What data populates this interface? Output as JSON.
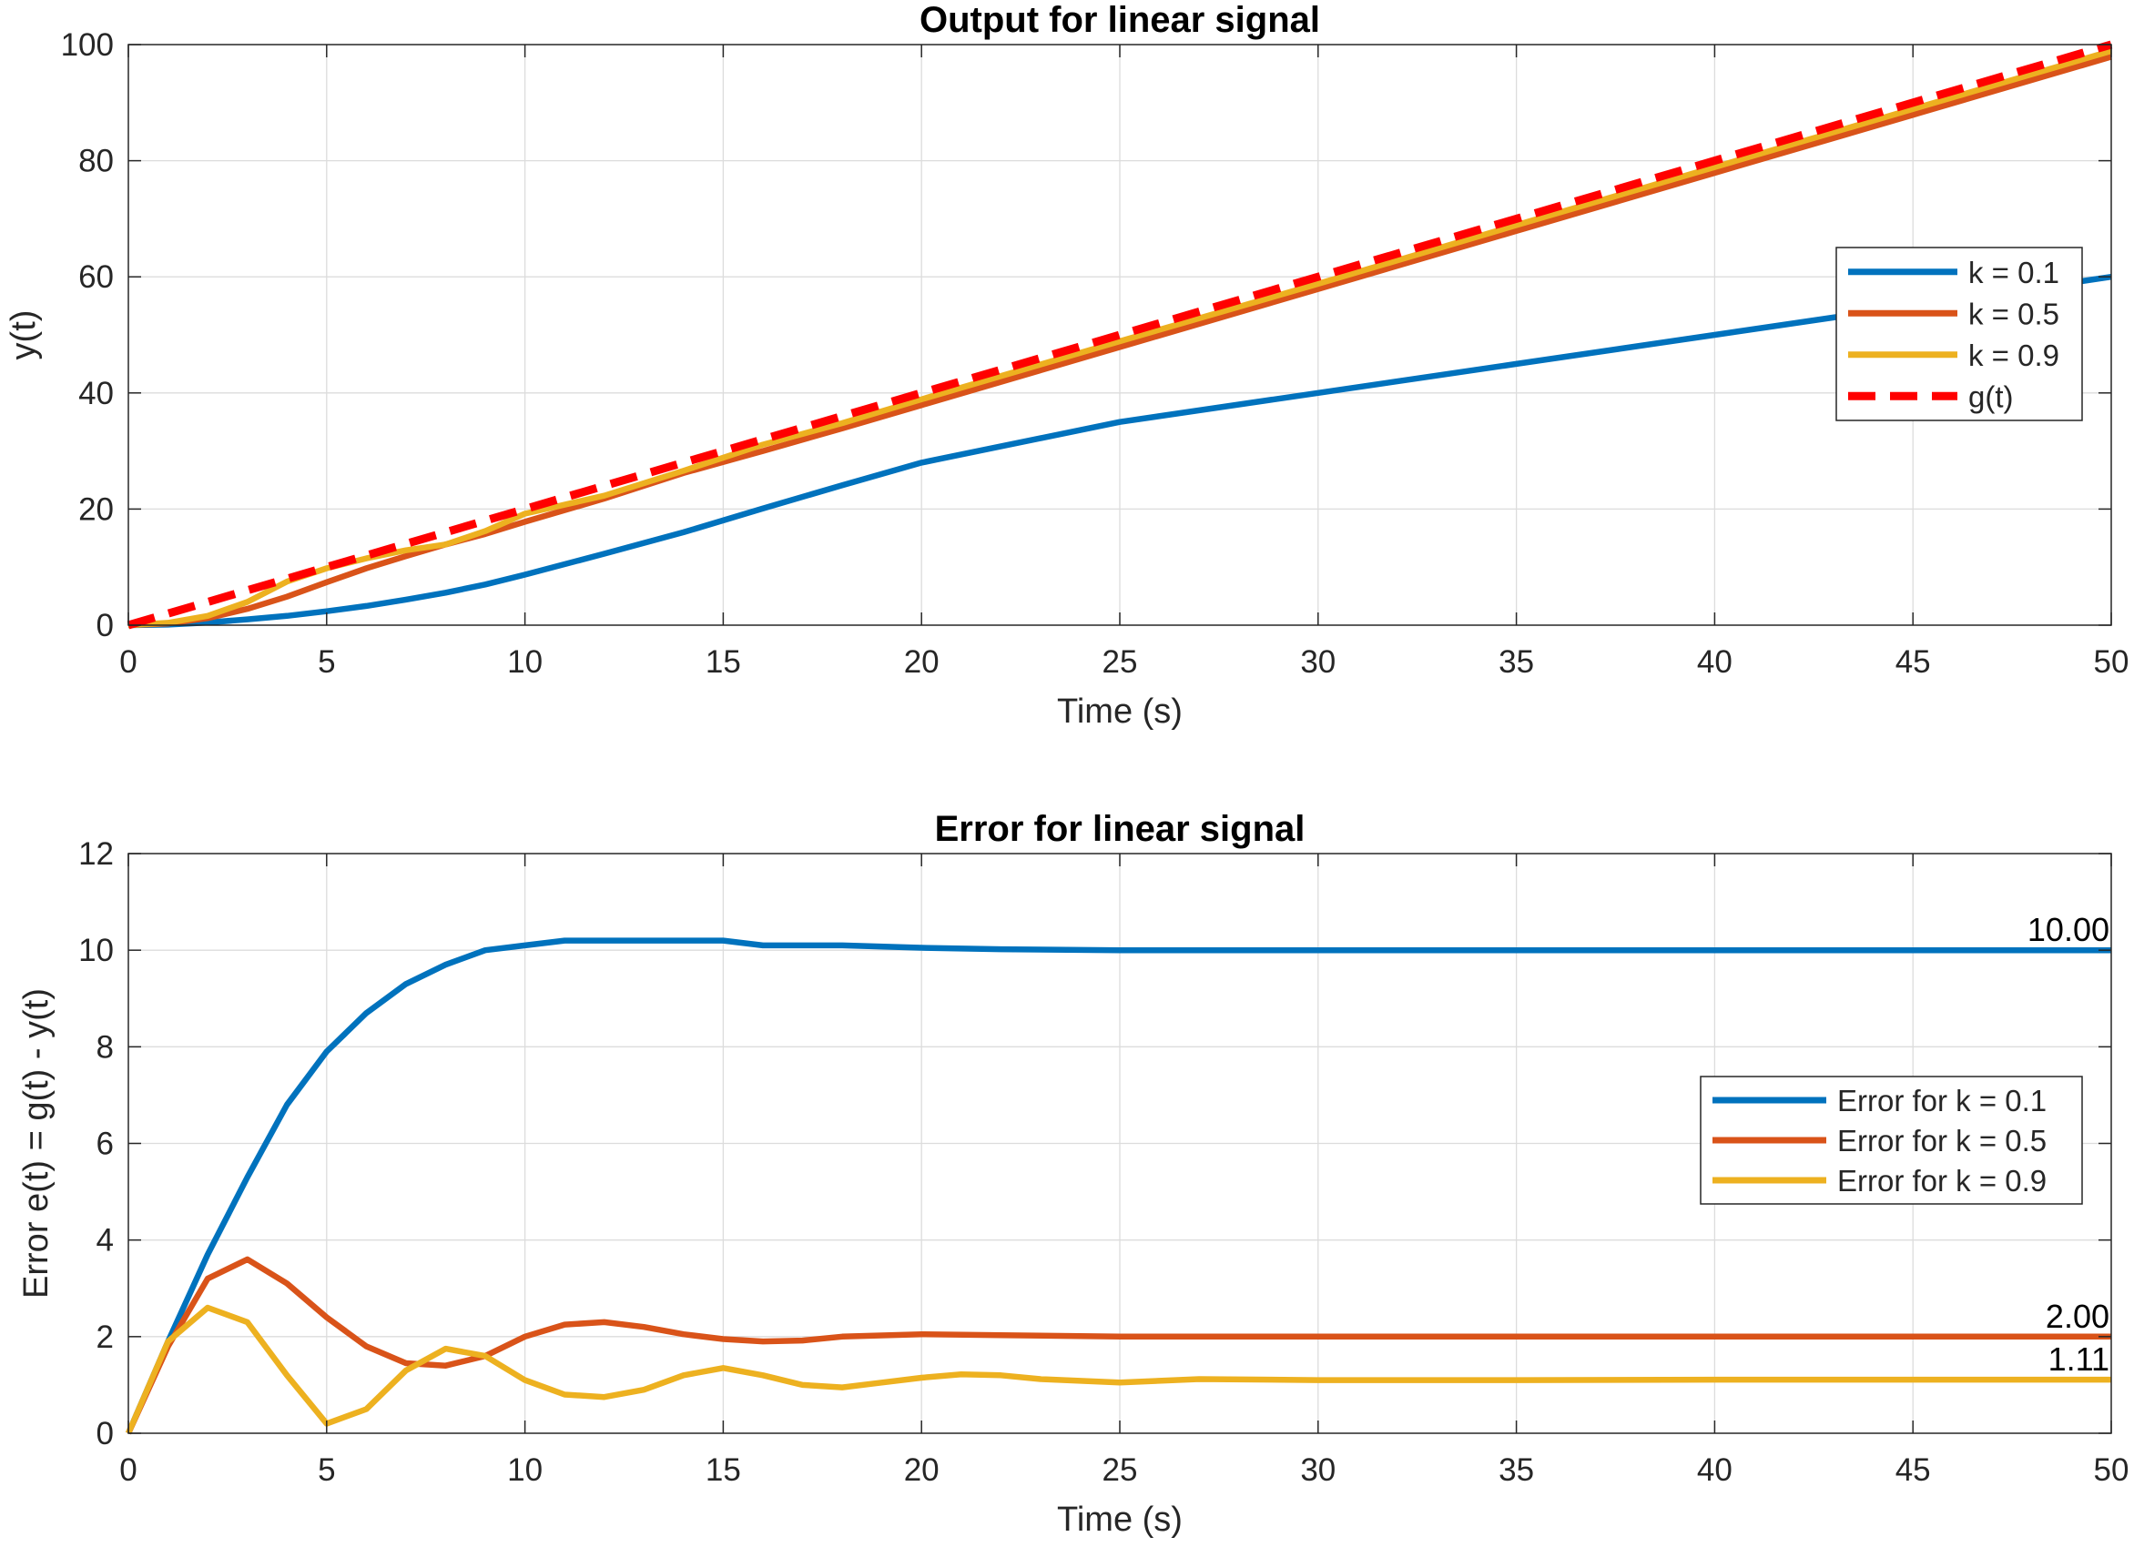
{
  "chart_data": [
    {
      "type": "line",
      "title": "Output for linear signal",
      "xlabel": "Time (s)",
      "ylabel": "y(t)",
      "xlim": [
        0,
        50
      ],
      "ylim": [
        0,
        100
      ],
      "xticks": [
        0,
        5,
        10,
        15,
        20,
        25,
        30,
        35,
        40,
        45,
        50
      ],
      "yticks": [
        0,
        20,
        40,
        60,
        80,
        100
      ],
      "grid": true,
      "legend_position": "right",
      "series": [
        {
          "name": "k = 0.1",
          "color": "#0072BD",
          "style": "solid",
          "x": [
            0,
            1,
            2,
            3,
            4,
            5,
            6,
            7,
            8,
            9,
            10,
            12,
            14,
            16,
            18,
            20,
            25,
            30,
            35,
            40,
            45,
            50
          ],
          "y": [
            0,
            0.1,
            0.45,
            1.0,
            1.6,
            2.4,
            3.3,
            4.4,
            5.6,
            7.0,
            8.7,
            12.3,
            16.0,
            20.1,
            24.1,
            28.0,
            35.0,
            40.0,
            45.0,
            50.0,
            55.0,
            60.0
          ]
        },
        {
          "name": "k = 0.5",
          "color": "#D95319",
          "style": "solid",
          "x": [
            0,
            1,
            2,
            3,
            4,
            5,
            6,
            7,
            8,
            9,
            10,
            12,
            14,
            16,
            18,
            20,
            25,
            30,
            35,
            40,
            45,
            50
          ],
          "y": [
            0,
            0.3,
            1.2,
            2.8,
            4.9,
            7.4,
            9.8,
            11.9,
            13.9,
            15.7,
            17.8,
            21.8,
            26.2,
            30.0,
            33.9,
            37.9,
            47.9,
            57.9,
            67.9,
            77.9,
            87.9,
            97.9
          ]
        },
        {
          "name": "k = 0.9",
          "color": "#EDB120",
          "style": "solid",
          "x": [
            0,
            1,
            2,
            3,
            4,
            5,
            6,
            7,
            8,
            9,
            10,
            12,
            14,
            16,
            18,
            20,
            25,
            30,
            35,
            40,
            45,
            50
          ],
          "y": [
            0,
            0.4,
            1.6,
            4.0,
            7.5,
            9.8,
            11.5,
            12.9,
            13.9,
            16.2,
            19.2,
            22.3,
            26.6,
            31.1,
            34.8,
            38.9,
            48.9,
            58.8,
            68.9,
            78.9,
            88.9,
            98.9
          ]
        },
        {
          "name": "g(t)",
          "color": "#FF0000",
          "style": "dashed",
          "x": [
            0,
            50
          ],
          "y": [
            0,
            100
          ]
        }
      ]
    },
    {
      "type": "line",
      "title": "Error for linear signal",
      "xlabel": "Time (s)",
      "ylabel": "Error e(t) = g(t) - y(t)",
      "xlim": [
        0,
        50
      ],
      "ylim": [
        0,
        12
      ],
      "xticks": [
        0,
        5,
        10,
        15,
        20,
        25,
        30,
        35,
        40,
        45,
        50
      ],
      "yticks": [
        0,
        2,
        4,
        6,
        8,
        10,
        12
      ],
      "grid": true,
      "legend_position": "right",
      "series": [
        {
          "name": "Error for k = 0.1",
          "color": "#0072BD",
          "style": "solid",
          "x": [
            0,
            1,
            2,
            3,
            4,
            5,
            6,
            7,
            8,
            9,
            10,
            11,
            12,
            13,
            14,
            15,
            16,
            18,
            20,
            22,
            25,
            30,
            35,
            40,
            45,
            50
          ],
          "y": [
            0,
            1.9,
            3.7,
            5.3,
            6.8,
            7.9,
            8.7,
            9.3,
            9.7,
            10.0,
            10.1,
            10.2,
            10.2,
            10.2,
            10.2,
            10.2,
            10.1,
            10.1,
            10.05,
            10.02,
            10.0,
            10.0,
            10.0,
            10.0,
            10.0,
            10.0
          ],
          "end_label": "10.00"
        },
        {
          "name": "Error for k = 0.5",
          "color": "#D95319",
          "style": "solid",
          "x": [
            0,
            1,
            2,
            3,
            4,
            5,
            6,
            7,
            8,
            9,
            10,
            11,
            12,
            13,
            14,
            15,
            16,
            17,
            18,
            20,
            22,
            25,
            30,
            35,
            40,
            45,
            50
          ],
          "y": [
            0,
            1.8,
            3.2,
            3.6,
            3.1,
            2.4,
            1.8,
            1.45,
            1.4,
            1.6,
            2.0,
            2.25,
            2.3,
            2.2,
            2.05,
            1.95,
            1.9,
            1.92,
            2.0,
            2.05,
            2.03,
            2.0,
            2.0,
            2.0,
            2.0,
            2.0,
            2.0
          ],
          "end_label": "2.00"
        },
        {
          "name": "Error for k = 0.9",
          "color": "#EDB120",
          "style": "solid",
          "x": [
            0,
            1,
            2,
            3,
            4,
            5,
            6,
            7,
            8,
            9,
            10,
            11,
            12,
            13,
            14,
            15,
            16,
            17,
            18,
            19,
            20,
            21,
            22,
            23,
            25,
            27,
            30,
            35,
            40,
            45,
            50
          ],
          "y": [
            0,
            1.9,
            2.6,
            2.3,
            1.2,
            0.2,
            0.5,
            1.3,
            1.75,
            1.6,
            1.1,
            0.8,
            0.75,
            0.9,
            1.2,
            1.35,
            1.2,
            1.0,
            0.95,
            1.05,
            1.15,
            1.22,
            1.2,
            1.12,
            1.05,
            1.12,
            1.1,
            1.1,
            1.11,
            1.11,
            1.11
          ],
          "end_label": "1.11"
        }
      ]
    }
  ]
}
